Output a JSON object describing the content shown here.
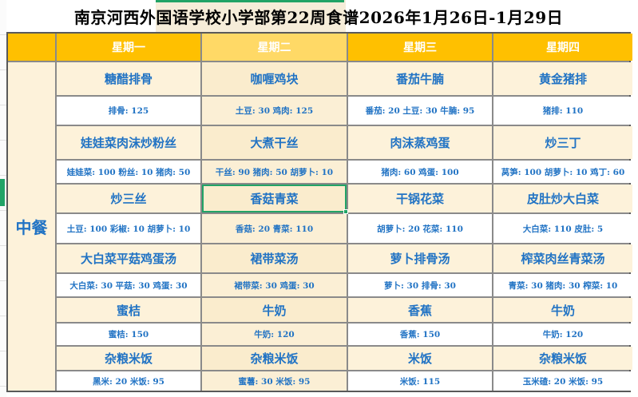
{
  "title": "南京河西外国语学校小学部第22周食谱2026年1月26日-1月29日",
  "meal_label": "中餐",
  "columns": [
    {
      "label": "星期一",
      "highlight": false
    },
    {
      "label": "星期二",
      "highlight": true
    },
    {
      "label": "星期三",
      "highlight": false
    },
    {
      "label": "星期四",
      "highlight": false
    }
  ],
  "rows": [
    {
      "cells": [
        {
          "dish": "糖醋排骨",
          "detail": "排骨: 125"
        },
        {
          "dish": "咖喱鸡块",
          "detail": "土豆: 30 鸡肉: 125"
        },
        {
          "dish": "番茄牛腩",
          "detail": "番茄: 20 土豆: 30 牛腩: 95"
        },
        {
          "dish": "黄金猪排",
          "detail": "猪排: 110"
        }
      ]
    },
    {
      "cells": [
        {
          "dish": "娃娃菜肉沫炒粉丝",
          "detail": "娃娃菜: 100 粉丝: 10 猪肉: 50"
        },
        {
          "dish": "大煮干丝",
          "detail": "干丝: 90 猪肉: 50 胡萝卜: 10"
        },
        {
          "dish": "肉沫蒸鸡蛋",
          "detail": "猪肉: 60 鸡蛋: 100"
        },
        {
          "dish": "炒三丁",
          "detail": "莴笋: 100 胡萝卜: 10 鸡丁: 60"
        }
      ]
    },
    {
      "cells": [
        {
          "dish": "炒三丝",
          "detail": "土豆: 100 彩椒: 10 胡萝卜: 10"
        },
        {
          "dish": "香菇青菜",
          "detail": "香菇: 20 青菜: 110"
        },
        {
          "dish": "干锅花菜",
          "detail": "胡萝卜: 20 花菜: 110"
        },
        {
          "dish": "皮肚炒大白菜",
          "detail": "大白菜: 110 皮肚: 5"
        }
      ]
    },
    {
      "cells": [
        {
          "dish": "大白菜平菇鸡蛋汤",
          "detail": "大白菜: 30 平菇: 30 鸡蛋: 30"
        },
        {
          "dish": "裙带菜汤",
          "detail": "裙带菜: 30 鸡蛋: 30"
        },
        {
          "dish": "萝卜排骨汤",
          "detail": "萝卜: 30 排骨: 30"
        },
        {
          "dish": "榨菜肉丝青菜汤",
          "detail": "青菜: 30 猪肉: 30 榨菜: 10"
        }
      ]
    },
    {
      "cells": [
        {
          "dish": "蜜桔",
          "detail": "蜜桔: 150"
        },
        {
          "dish": "牛奶",
          "detail": "牛奶: 120"
        },
        {
          "dish": "香蕉",
          "detail": "香蕉: 150"
        },
        {
          "dish": "牛奶",
          "detail": "牛奶: 120"
        }
      ]
    },
    {
      "cells": [
        {
          "dish": "杂粮米饭",
          "detail": "黑米: 20 米饭: 95"
        },
        {
          "dish": "杂粮米饭",
          "detail": "蜜薯: 30 米饭: 95"
        },
        {
          "dish": "米饭",
          "detail": "米饭: 115"
        },
        {
          "dish": "杂粮米饭",
          "detail": "玉米碴: 20 米饭: 95"
        }
      ]
    }
  ],
  "selection": {
    "row_index": 2,
    "col_index": 1,
    "selected_dish": "香菇青菜"
  },
  "colors": {
    "header_bg": "#FFC000",
    "header_highlight_bg": "#FFD966",
    "body_cream": "#FDF2DA",
    "highlight_col_dish": "#FAECCD",
    "highlight_col_detail": "#FBEFD5",
    "selection_green": "#21A366",
    "text_blue": "#2173C4",
    "grid_border": "#8A8A8A"
  }
}
